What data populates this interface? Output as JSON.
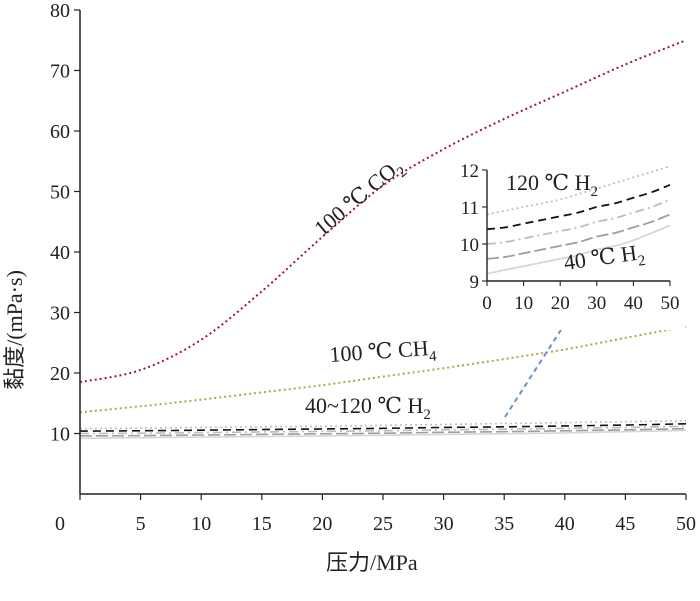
{
  "chart_data": [
    {
      "type": "line",
      "xlabel": "压力/MPa",
      "ylabel": "黏度/(mPa·s)",
      "xlim": [
        0,
        50
      ],
      "ylim": [
        0,
        80
      ],
      "x_ticks": [
        "0",
        "5",
        "10",
        "15",
        "20",
        "25",
        "30",
        "35",
        "40",
        "45",
        "50"
      ],
      "y_ticks": [
        "10",
        "20",
        "30",
        "40",
        "50",
        "60",
        "70",
        "80"
      ],
      "x": [
        0,
        5,
        10,
        15,
        20,
        25,
        30,
        35,
        40,
        45,
        50
      ],
      "series": [
        {
          "label": "100 ℃ CO",
          "sub": "2",
          "color": "#a0182a",
          "dash": "dot",
          "values": [
            18.5,
            20.5,
            25.5,
            33.5,
            42.5,
            51.0,
            57.0,
            62.0,
            66.5,
            71.0,
            75.0
          ]
        },
        {
          "label": "100 ℃ CH",
          "sub": "4",
          "color": "#b5a34a",
          "dash": "dot",
          "values": [
            13.5,
            14.5,
            15.6,
            16.8,
            18.0,
            19.4,
            20.8,
            22.3,
            23.9,
            25.8,
            27.7
          ]
        },
        {
          "color": "#c0c0c0",
          "dash": "dot",
          "values": [
            10.8,
            10.9,
            11.0,
            11.1,
            11.2,
            11.35,
            11.5,
            11.65,
            11.8,
            11.95,
            12.1
          ]
        },
        {
          "color": "#111111",
          "dash": "dash",
          "values": [
            10.4,
            10.45,
            10.55,
            10.65,
            10.75,
            10.85,
            11.0,
            11.1,
            11.25,
            11.4,
            11.6
          ]
        },
        {
          "color": "#bdbdbd",
          "dash": "dashdot",
          "values": [
            10.0,
            10.05,
            10.15,
            10.25,
            10.35,
            10.45,
            10.6,
            10.7,
            10.85,
            11.0,
            11.2
          ]
        },
        {
          "color": "#9e9e9e",
          "dash": "longdash",
          "values": [
            9.6,
            9.65,
            9.75,
            9.85,
            9.95,
            10.05,
            10.2,
            10.3,
            10.45,
            10.6,
            10.8
          ]
        },
        {
          "color": "#d6d6d6",
          "dash": "solid",
          "values": [
            9.2,
            9.3,
            9.4,
            9.5,
            9.6,
            9.7,
            9.85,
            9.95,
            10.1,
            10.3,
            10.5
          ]
        }
      ],
      "annotations": [
        {
          "text": "40~120 ℃ H",
          "sub": "2"
        }
      ]
    },
    {
      "type": "line",
      "xlim": [
        0,
        50
      ],
      "ylim": [
        9,
        12
      ],
      "x_ticks": [
        "0",
        "10",
        "20",
        "30",
        "40",
        "50"
      ],
      "y_ticks": [
        "9",
        "10",
        "11",
        "12"
      ],
      "annotations": [
        {
          "text": "120 ℃ H",
          "sub": "2"
        },
        {
          "text": "40 ℃ H",
          "sub": "2"
        }
      ]
    }
  ],
  "arrow_color": "#6a8fd0"
}
